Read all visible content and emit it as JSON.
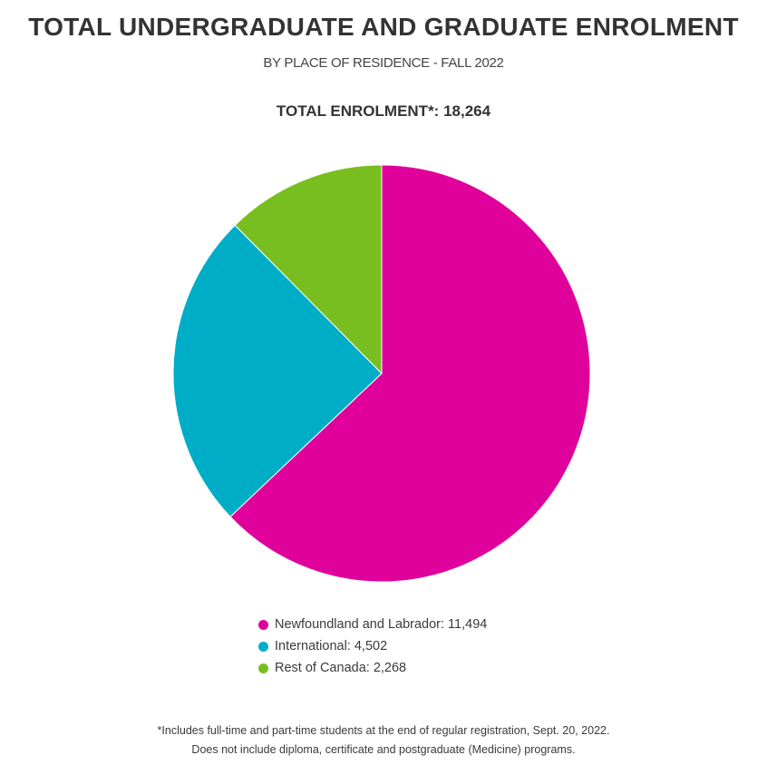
{
  "chart_data": {
    "type": "pie",
    "title": "TOTAL UNDERGRADUATE AND GRADUATE ENROLMENT",
    "subtitle": "BY PLACE OF RESIDENCE - FALL 2022",
    "total_label": "TOTAL ENROLMENT*: 18,264",
    "slices": [
      {
        "label": "Newfoundland and Labrador: 11,494",
        "value": 11494,
        "color": "#e0009b"
      },
      {
        "label": "International: 4,502",
        "value": 4502,
        "color": "#00adc6"
      },
      {
        "label": "Rest of Canada: 2,268",
        "value": 2268,
        "color": "#78be20"
      }
    ],
    "legend_position": "bottom"
  },
  "footnote": {
    "line1": "*Includes full-time and part-time students at the end of regular registration, Sept. 20, 2022.",
    "line2": "Does not include diploma, certificate and postgraduate (Medicine) programs."
  }
}
